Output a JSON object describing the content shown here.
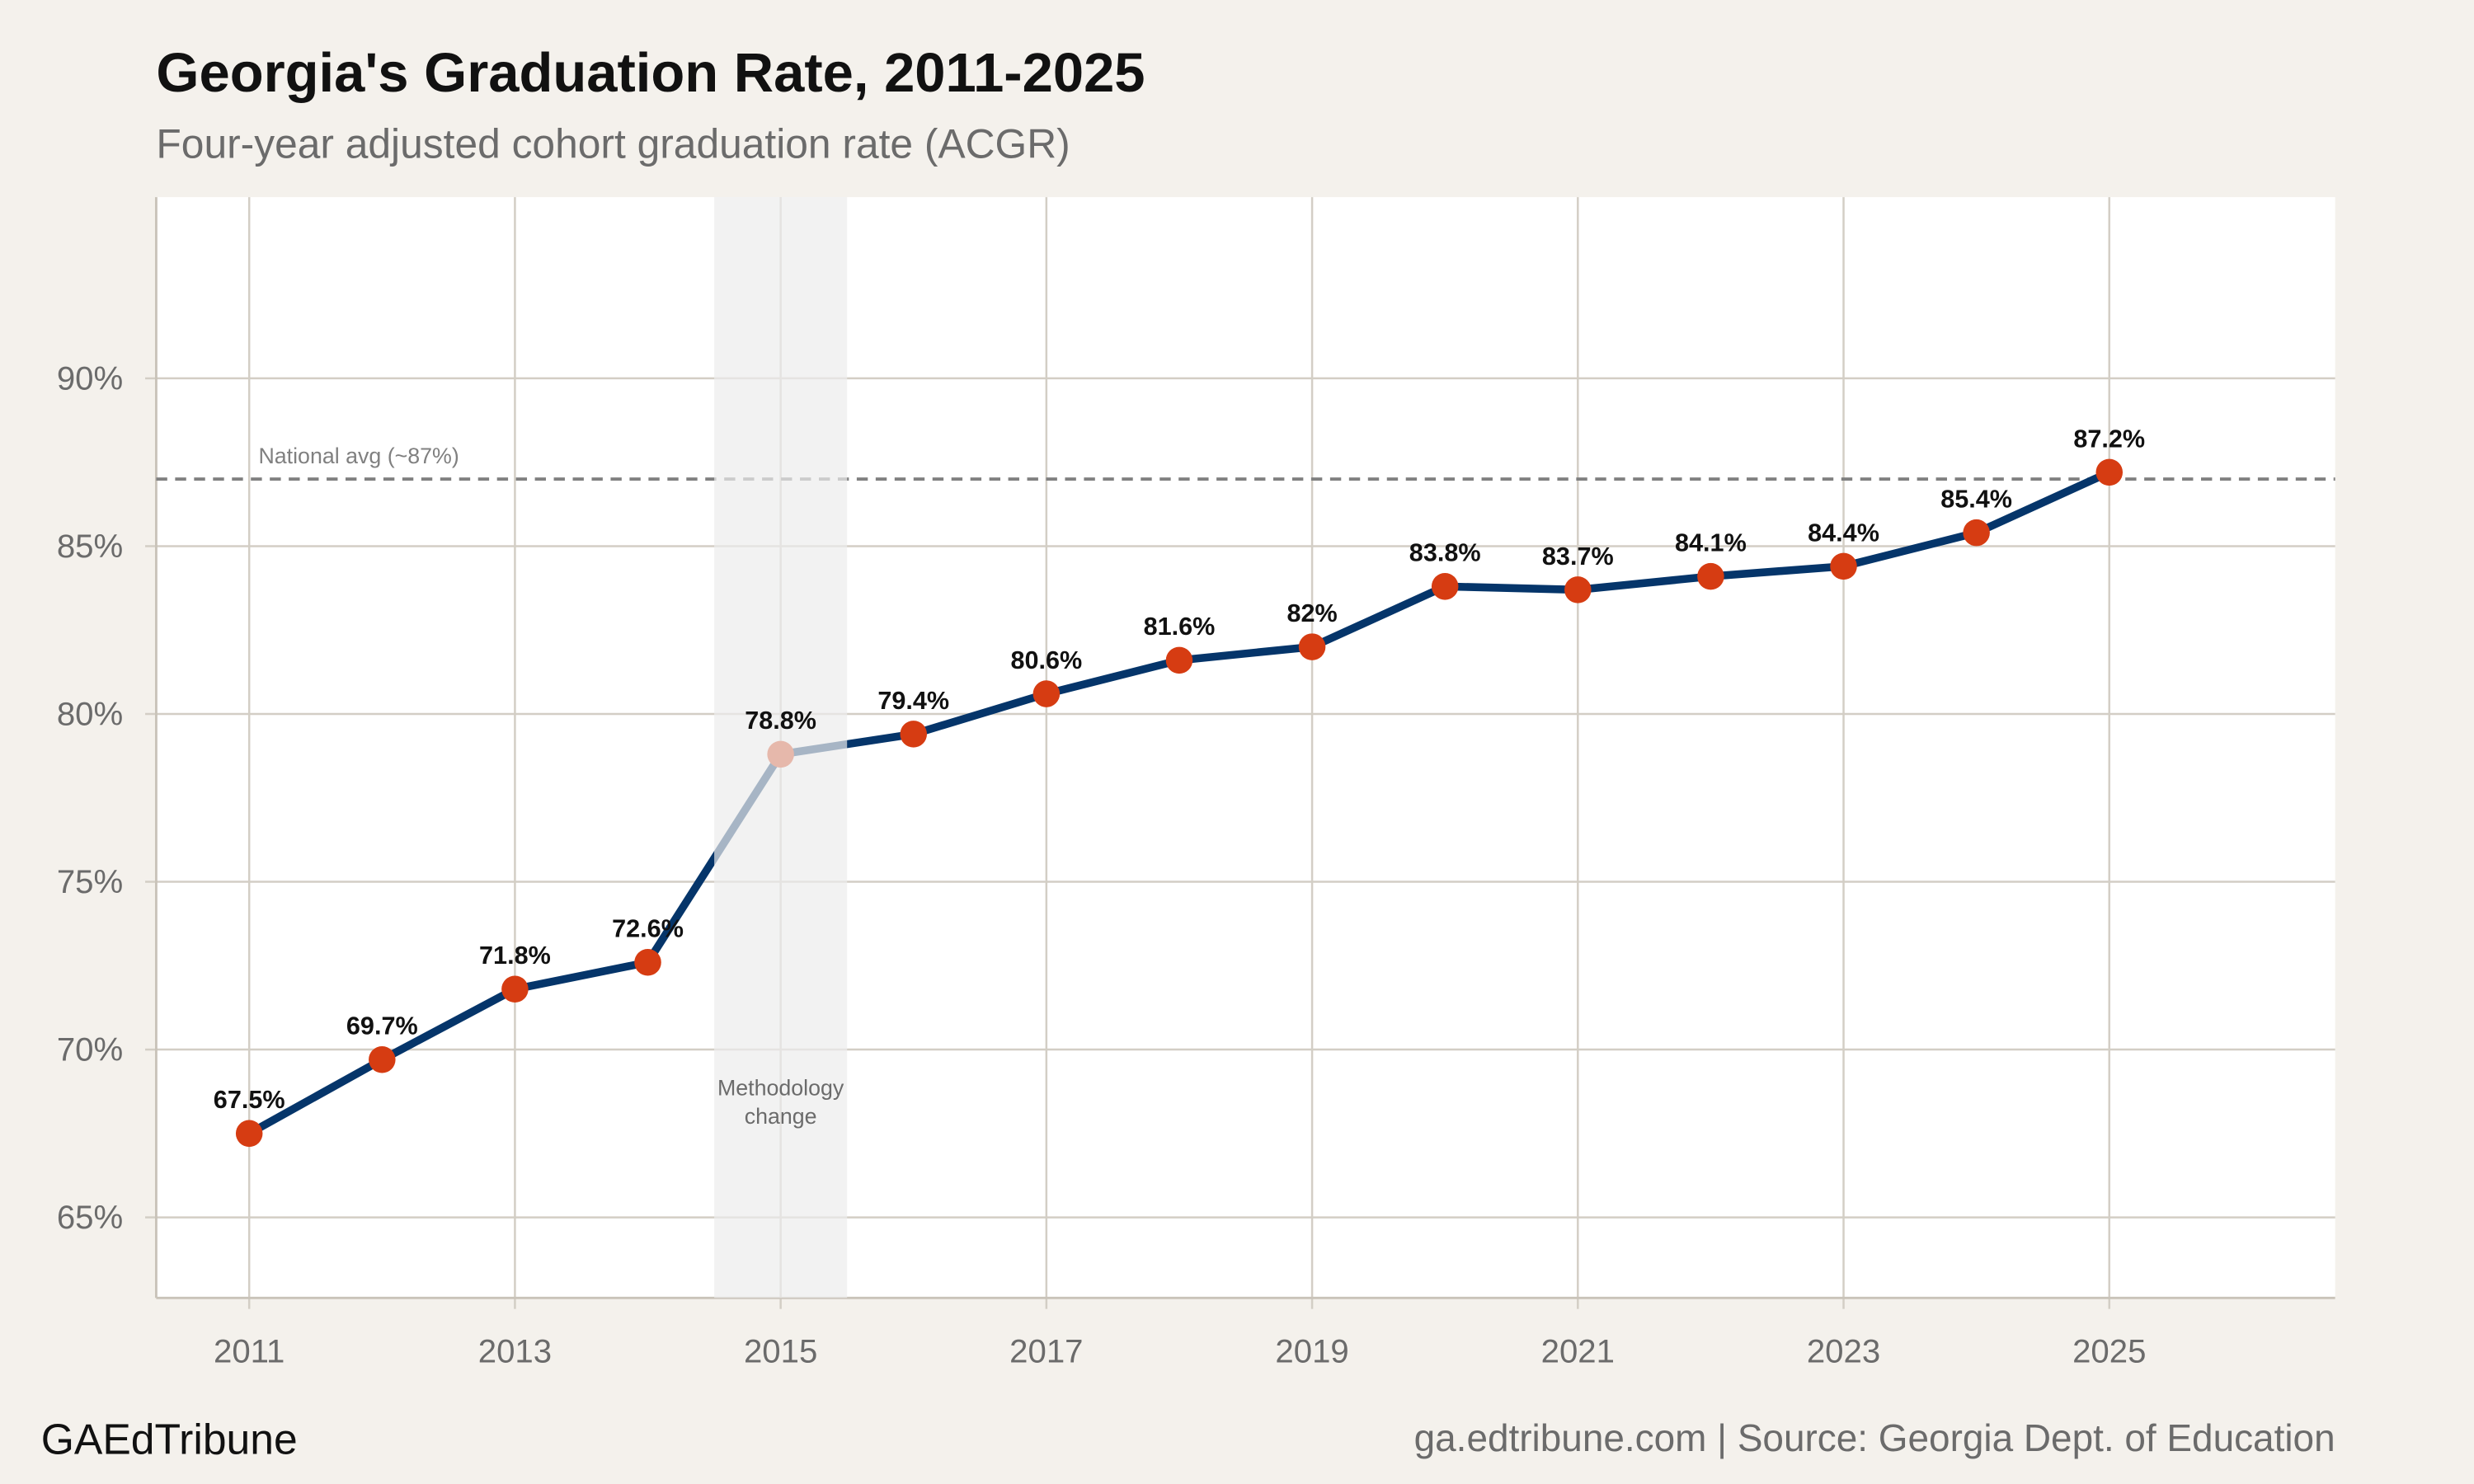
{
  "chart_data": {
    "type": "line",
    "title": "Georgia's Graduation Rate, 2011-2025",
    "subtitle": "Four-year adjusted cohort graduation rate (ACGR)",
    "xlabel": "",
    "ylabel": "",
    "x": [
      2011,
      2012,
      2013,
      2014,
      2015,
      2016,
      2017,
      2018,
      2019,
      2020,
      2021,
      2022,
      2023,
      2024,
      2025
    ],
    "values": [
      67.5,
      69.7,
      71.8,
      72.6,
      78.8,
      79.4,
      80.6,
      81.6,
      82,
      83.8,
      83.7,
      84.1,
      84.4,
      85.4,
      87.2
    ],
    "data_labels": [
      "67.5%",
      "69.7%",
      "71.8%",
      "72.6%",
      "78.8%",
      "79.4%",
      "80.6%",
      "81.6%",
      "82%",
      "83.8%",
      "83.7%",
      "84.1%",
      "84.4%",
      "85.4%",
      "87.2%"
    ],
    "xlim": [
      2010.3,
      2026.7
    ],
    "ylim": [
      62.6,
      95.4
    ],
    "x_ticks": [
      2011,
      2013,
      2015,
      2017,
      2019,
      2021,
      2023,
      2025
    ],
    "x_tick_labels": [
      "2011",
      "2013",
      "2015",
      "2017",
      "2019",
      "2021",
      "2023",
      "2025"
    ],
    "y_ticks": [
      65,
      70,
      75,
      80,
      85,
      90
    ],
    "y_tick_labels": [
      "65%",
      "70%",
      "75%",
      "80%",
      "85%",
      "90%"
    ],
    "grid": true,
    "reference_line": {
      "y": 87,
      "label": "National avg (~87%)",
      "style": "dashed"
    },
    "shaded_band": {
      "x_range": [
        2014.5,
        2015.5
      ],
      "label_line1": "Methodology",
      "label_line2": "change",
      "label_y": 68.5
    },
    "colors": {
      "line": "#05356a",
      "points": "#d63c12",
      "band": "#ececec",
      "reference": "#808080",
      "background": "#f4f1ec",
      "panel": "#ffffff",
      "grid": "#d3cec5"
    }
  },
  "footer": {
    "brand": "GAEdTribune",
    "source": "ga.edtribune.com | Source: Georgia Dept. of Education"
  }
}
